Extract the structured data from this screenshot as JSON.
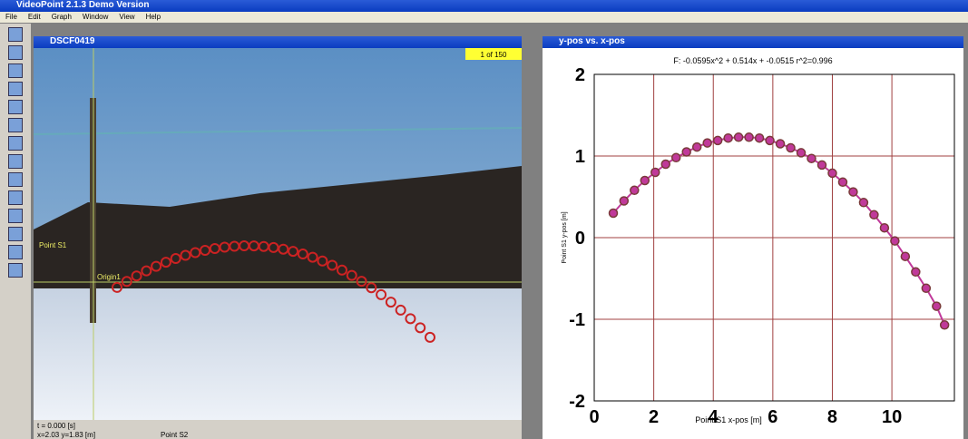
{
  "window_title": "VideoPoint 2.1.3 Demo Version",
  "menu": [
    "File",
    "Edit",
    "Graph",
    "Window",
    "View",
    "Help"
  ],
  "video": {
    "title": "DSCF0419",
    "frame_label": "1 of 150",
    "point_label": "Point S1",
    "origin_label": "Origin1",
    "time": "t = 0.000 [s]",
    "coords": "x=2.03 y=1.83 [m]",
    "status_point": "Point S2"
  },
  "graph": {
    "title": "y-pos vs. x-pos",
    "fit": "F: -0.0595x^2 + 0.514x + -0.0515  r^2=0.996",
    "x_label": "Point S1 x-pos [m]",
    "y_label": "Point S1 y-pos [m]",
    "xlim": [
      0,
      12.1
    ],
    "ylim": [
      -2,
      2
    ],
    "xticks": [
      0,
      2,
      4,
      6,
      8,
      10
    ],
    "yticks": [
      2,
      1,
      0,
      -1,
      -2
    ],
    "grid": true,
    "color": "#c0399a",
    "marker_color": "#7a3a3a",
    "points": {
      "x": [
        0.64,
        1.0,
        1.35,
        1.7,
        2.05,
        2.4,
        2.75,
        3.1,
        3.45,
        3.8,
        4.15,
        4.5,
        4.85,
        5.2,
        5.55,
        5.9,
        6.25,
        6.6,
        6.95,
        7.3,
        7.65,
        8.0,
        8.35,
        8.7,
        9.05,
        9.4,
        9.75,
        10.1,
        10.45,
        10.8,
        11.15,
        11.5,
        11.77
      ],
      "y": [
        0.3,
        0.45,
        0.58,
        0.7,
        0.8,
        0.9,
        0.98,
        1.05,
        1.11,
        1.16,
        1.19,
        1.22,
        1.23,
        1.23,
        1.22,
        1.19,
        1.15,
        1.1,
        1.04,
        0.97,
        0.89,
        0.79,
        0.68,
        0.56,
        0.43,
        0.28,
        0.12,
        -0.04,
        -0.23,
        -0.42,
        -0.62,
        -0.84,
        -1.07
      ]
    }
  }
}
